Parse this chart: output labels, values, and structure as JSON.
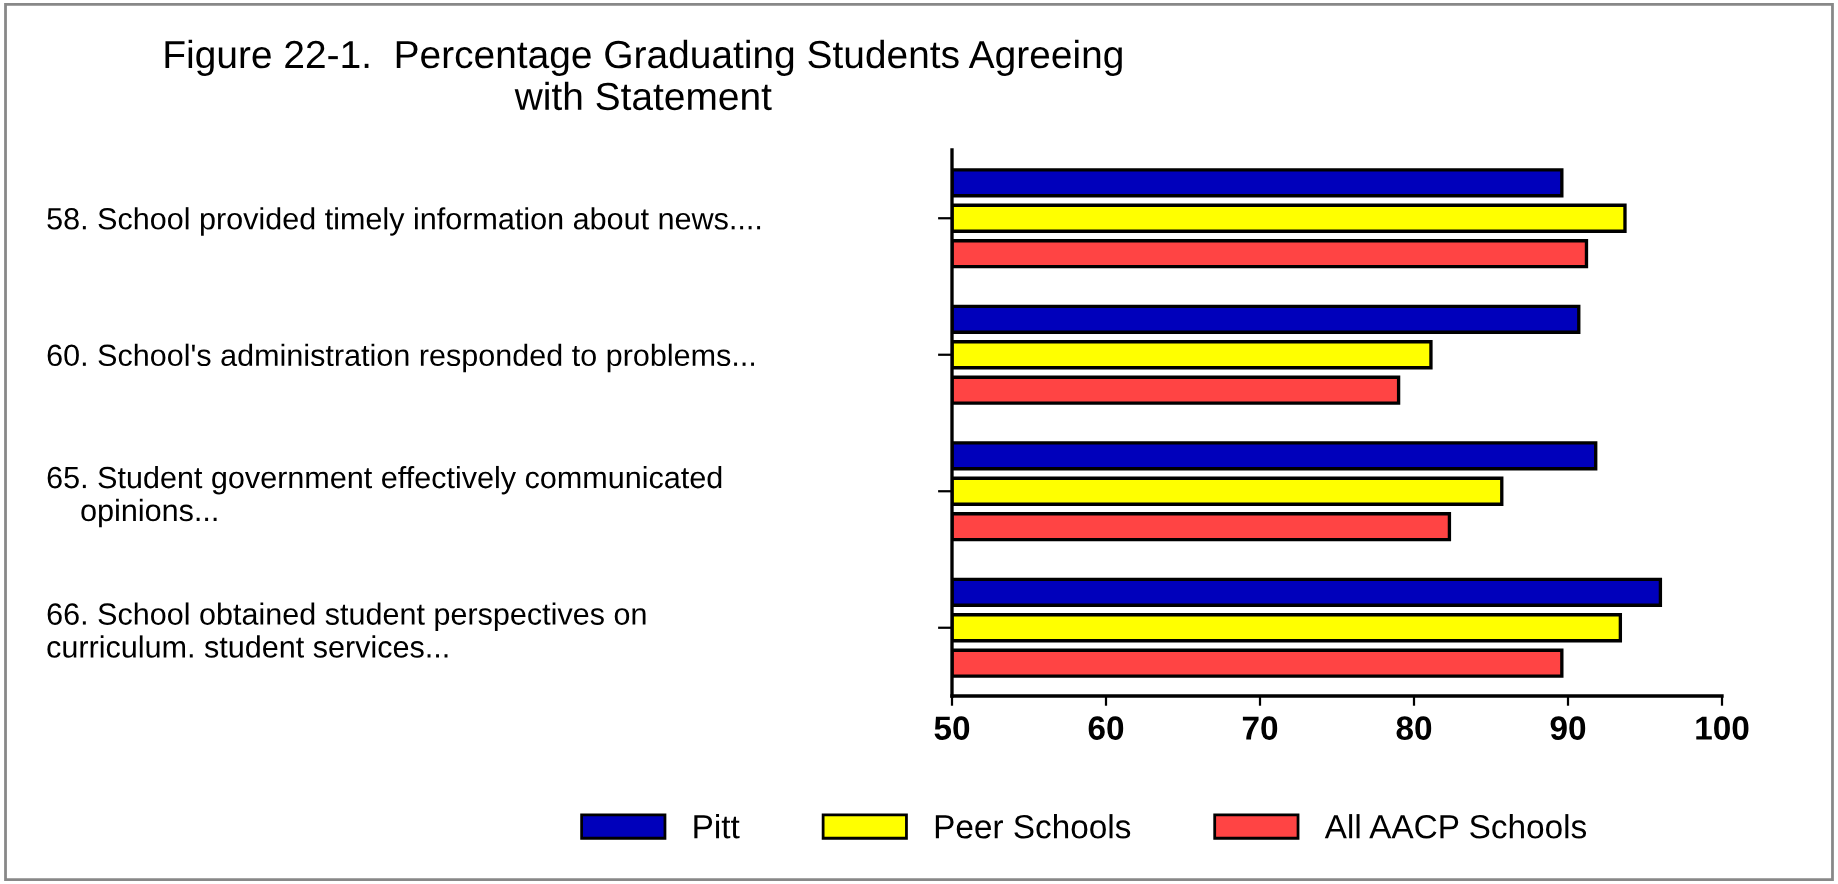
{
  "chart_data": {
    "type": "bar",
    "orientation": "horizontal",
    "title": "Figure 22-1.  Percentage Graduating Students Agreeing\nwith Statement",
    "categories": [
      "58. School provided timely information about news....",
      "60. School's administration responded to problems...",
      "65. Student government effectively communicated\n    opinions...",
      "66. School obtained student perspectives on\ncurriculum. student services..."
    ],
    "series": [
      {
        "name": "Pitt",
        "color": "#0000bb",
        "values": [
          89.6,
          90.7,
          91.8,
          96.0
        ]
      },
      {
        "name": "Peer Schools",
        "color": "#ffff00",
        "values": [
          93.7,
          81.1,
          85.7,
          93.4
        ]
      },
      {
        "name": "All AACP Schools",
        "color": "#ff4444",
        "values": [
          91.2,
          79.0,
          82.3,
          89.6
        ]
      }
    ],
    "xlim": [
      50,
      100
    ],
    "xticks": [
      50,
      60,
      70,
      80,
      90,
      100
    ],
    "grid": false,
    "legend": "bottom"
  }
}
